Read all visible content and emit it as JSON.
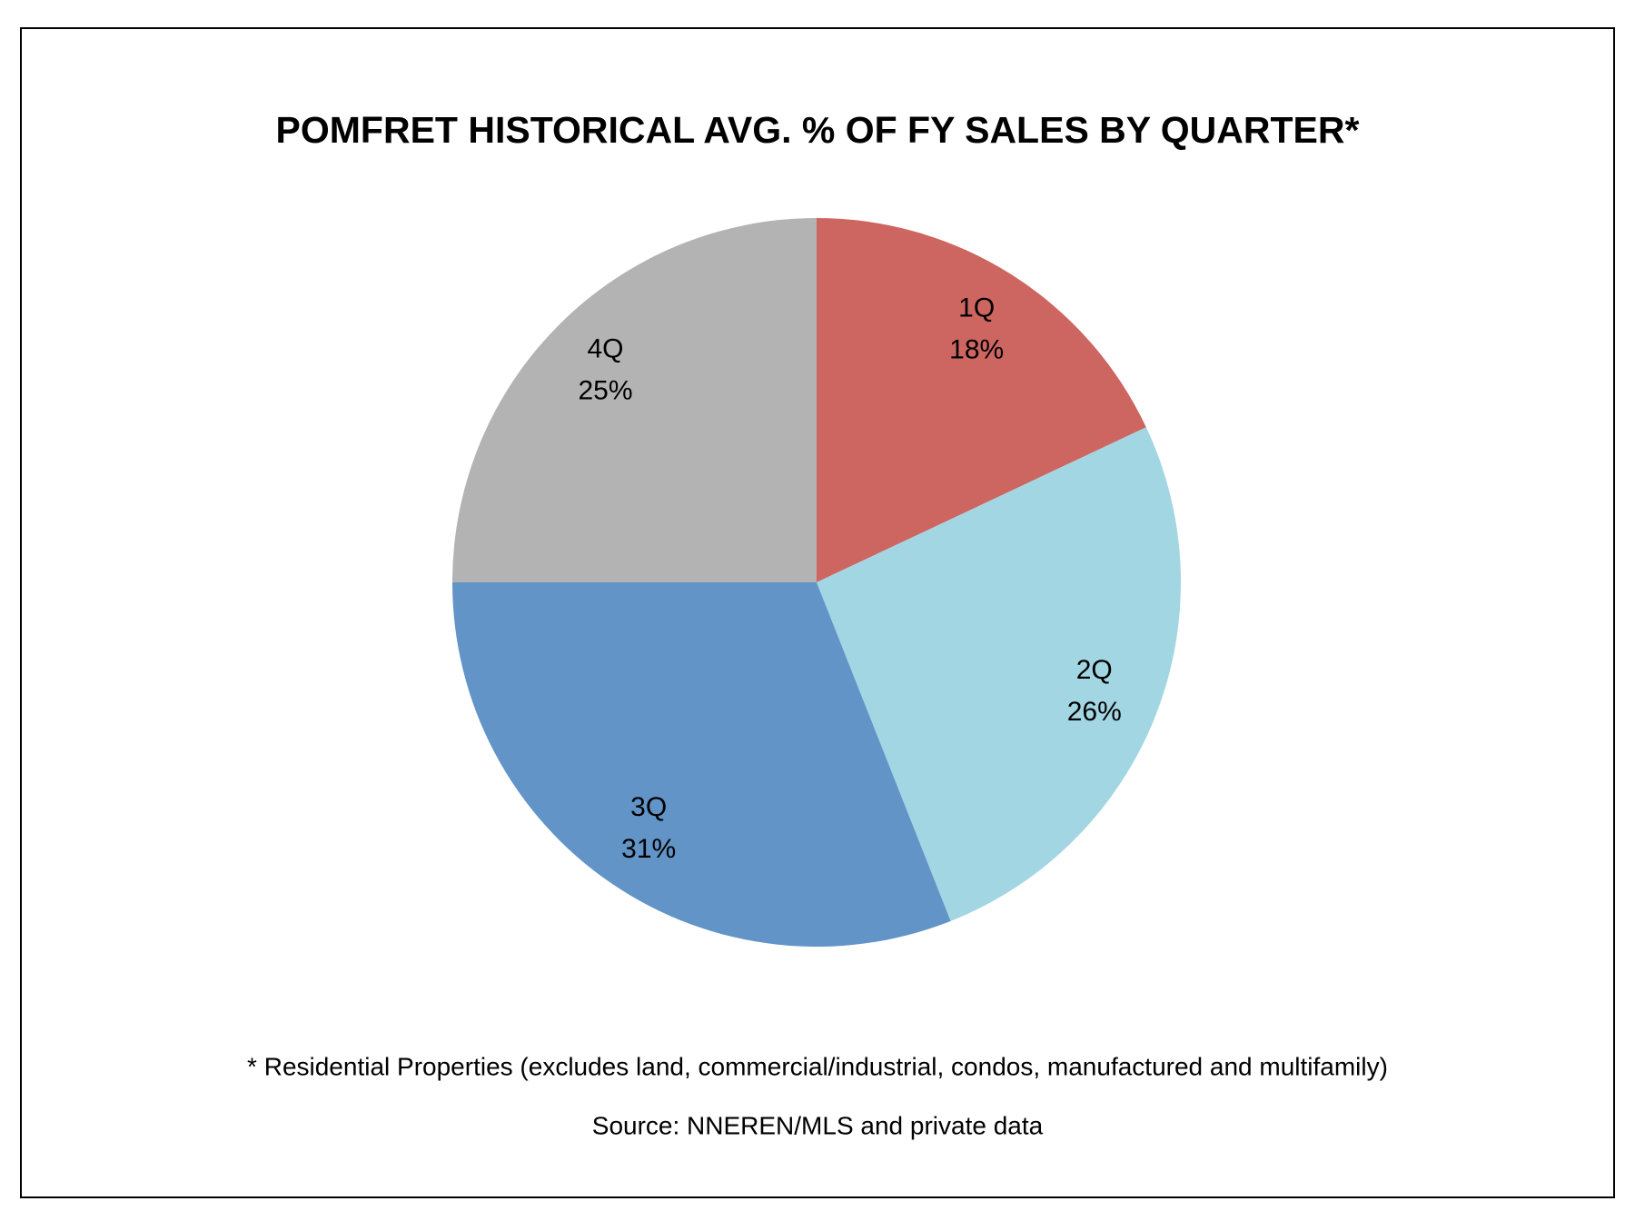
{
  "chart_data": {
    "type": "pie",
    "title": "POMFRET HISTORICAL AVG. % OF FY SALES BY QUARTER*",
    "categories": [
      "1Q",
      "2Q",
      "3Q",
      "4Q"
    ],
    "values": [
      18,
      26,
      31,
      25
    ],
    "value_labels": [
      "18%",
      "26%",
      "31%",
      "25%"
    ],
    "colors": [
      "#cd6560",
      "#a3d6e3",
      "#6294c8",
      "#b3b3b3"
    ],
    "footnote": "* Residential Properties (excludes land, commercial/industrial, condos, manufactured and multifamily)",
    "source": "Source: NNEREN/MLS and private data"
  }
}
